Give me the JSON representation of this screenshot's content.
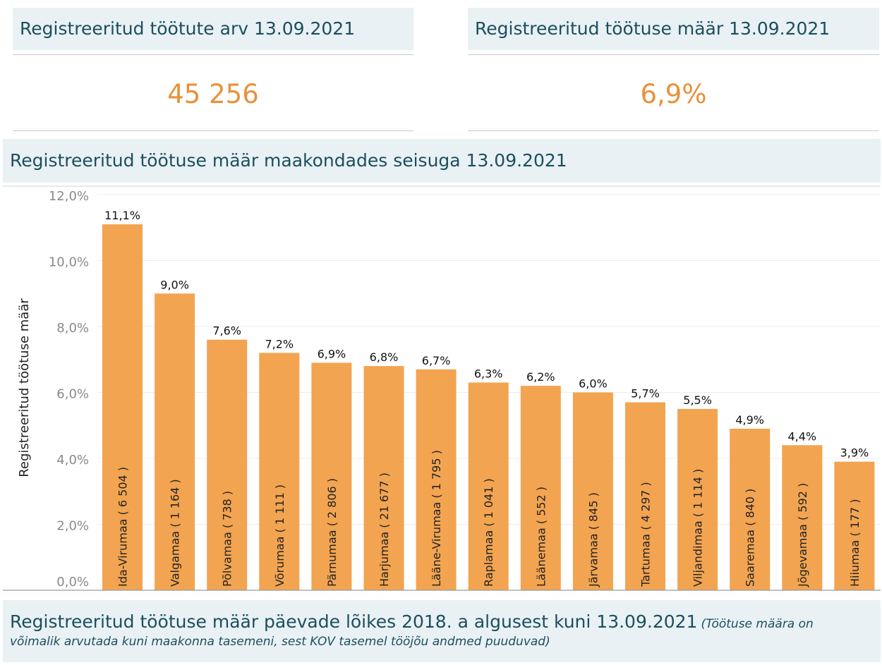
{
  "kpis": {
    "unemployed_count": {
      "title": "Registreeritud töötute arv 13.09.2021",
      "value": "45 256"
    },
    "unemployment_rate": {
      "title": "Registreeritud töötuse määr 13.09.2021",
      "value": "6,9%"
    }
  },
  "county_section": {
    "title": "Registreeritud töötuse määr maakondades seisuga 13.09.2021"
  },
  "colors": {
    "bar": "#f2a451",
    "kpi_value": "#e8913a",
    "title_bg": "#e9f1f4"
  },
  "chart_data": {
    "type": "bar",
    "ylabel": "Registreeritud töötuse määr",
    "ylim": [
      0,
      12
    ],
    "yticks": [
      0,
      2,
      4,
      6,
      8,
      10,
      12
    ],
    "ytick_labels": [
      "0,0%",
      "2,0%",
      "4,0%",
      "6,0%",
      "8,0%",
      "10,0%",
      "12,0%"
    ],
    "grid": true,
    "categories": [
      "Ida-Virumaa ( 6 504 )",
      "Valgamaa ( 1 164 )",
      "Põlvamaa ( 738 )",
      "Võrumaa ( 1 111 )",
      "Pärnumaa ( 2 806 )",
      "Harjumaa ( 21 677 )",
      "Lääne-Virumaa ( 1 795 )",
      "Raplamaa ( 1 041 )",
      "Läänemaa ( 552 )",
      "Järvamaa ( 845 )",
      "Tartumaa ( 4 297 )",
      "Viljandimaa ( 1 114 )",
      "Saaremaa ( 840 )",
      "Jõgevamaa ( 592 )",
      "Hiiumaa ( 177 )"
    ],
    "values": [
      11.1,
      9.0,
      7.6,
      7.2,
      6.9,
      6.8,
      6.7,
      6.3,
      6.2,
      6.0,
      5.7,
      5.5,
      4.9,
      4.4,
      3.9
    ],
    "value_labels": [
      "11,1%",
      "9,0%",
      "7,6%",
      "7,2%",
      "6,9%",
      "6,8%",
      "6,7%",
      "6,3%",
      "6,2%",
      "6,0%",
      "5,7%",
      "5,5%",
      "4,9%",
      "4,4%",
      "3,9%"
    ]
  },
  "footer": {
    "title": "Registreeritud töötuse määr päevade lõikes 2018. a algusest kuni 13.09.2021",
    "note_part1": "(Töötuse määra on",
    "note_part2": "võimalik arvutada kuni maakonna tasemeni, sest KOV tasemel tööjõu andmed puuduvad)"
  }
}
